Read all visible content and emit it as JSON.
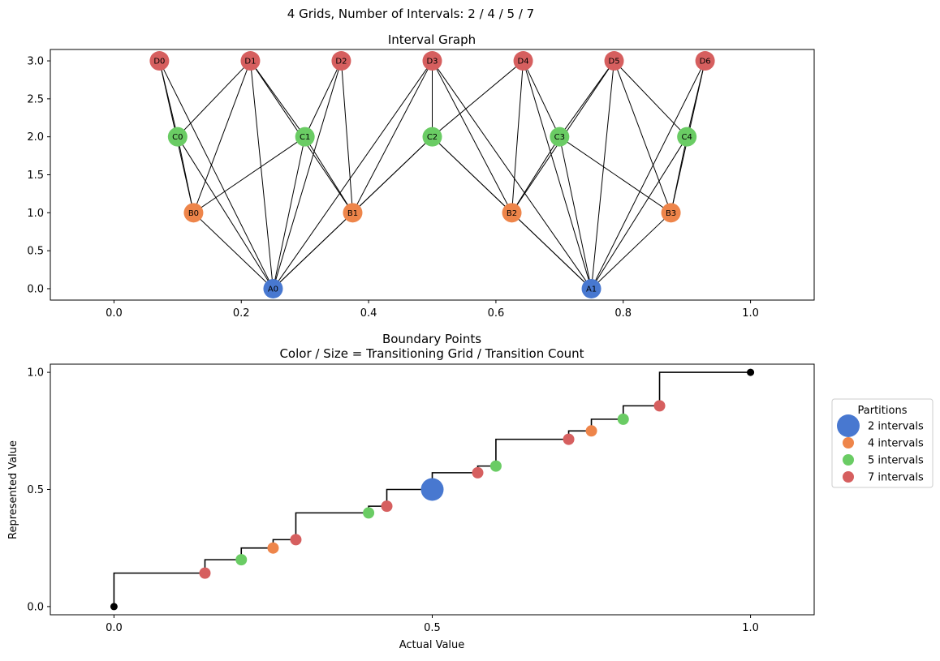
{
  "suptitle": "4 Grids, Number of Intervals: 2 / 4 / 5 / 7",
  "chart_data": [
    {
      "type": "network",
      "title": "Interval Graph",
      "xlim": [
        -0.1,
        1.1
      ],
      "ylim": [
        -0.15,
        3.15
      ],
      "xticks": [
        0.0,
        0.2,
        0.4,
        0.6,
        0.8,
        1.0
      ],
      "xtick_labels": [
        "0.0",
        "0.2",
        "0.4",
        "0.6",
        "0.8",
        "1.0"
      ],
      "yticks": [
        0.0,
        0.5,
        1.0,
        1.5,
        2.0,
        2.5,
        3.0
      ],
      "ytick_labels": [
        "0.0",
        "0.5",
        "1.0",
        "1.5",
        "2.0",
        "2.5",
        "3.0"
      ],
      "colors": {
        "A": "#4878d0",
        "B": "#ee854a",
        "C": "#6acc64",
        "D": "#d65f5f"
      },
      "nodes": [
        {
          "id": "A0",
          "x": 0.25,
          "y": 0
        },
        {
          "id": "A1",
          "x": 0.75,
          "y": 0
        },
        {
          "id": "B0",
          "x": 0.125,
          "y": 1
        },
        {
          "id": "B1",
          "x": 0.375,
          "y": 1
        },
        {
          "id": "B2",
          "x": 0.625,
          "y": 1
        },
        {
          "id": "B3",
          "x": 0.875,
          "y": 1
        },
        {
          "id": "C0",
          "x": 0.1,
          "y": 2
        },
        {
          "id": "C1",
          "x": 0.3,
          "y": 2
        },
        {
          "id": "C2",
          "x": 0.5,
          "y": 2
        },
        {
          "id": "C3",
          "x": 0.7,
          "y": 2
        },
        {
          "id": "C4",
          "x": 0.9,
          "y": 2
        },
        {
          "id": "D0",
          "x": 0.0714,
          "y": 3
        },
        {
          "id": "D1",
          "x": 0.2143,
          "y": 3
        },
        {
          "id": "D2",
          "x": 0.3571,
          "y": 3
        },
        {
          "id": "D3",
          "x": 0.5,
          "y": 3
        },
        {
          "id": "D4",
          "x": 0.6429,
          "y": 3
        },
        {
          "id": "D5",
          "x": 0.7857,
          "y": 3
        },
        {
          "id": "D6",
          "x": 0.9286,
          "y": 3
        }
      ],
      "edges": [
        [
          "A0",
          "B0"
        ],
        [
          "A0",
          "B1"
        ],
        [
          "A0",
          "C0"
        ],
        [
          "A0",
          "C1"
        ],
        [
          "A0",
          "C2"
        ],
        [
          "A0",
          "D0"
        ],
        [
          "A0",
          "D1"
        ],
        [
          "A0",
          "D2"
        ],
        [
          "A0",
          "D3"
        ],
        [
          "A1",
          "B2"
        ],
        [
          "A1",
          "B3"
        ],
        [
          "A1",
          "C2"
        ],
        [
          "A1",
          "C3"
        ],
        [
          "A1",
          "C4"
        ],
        [
          "A1",
          "D3"
        ],
        [
          "A1",
          "D4"
        ],
        [
          "A1",
          "D5"
        ],
        [
          "A1",
          "D6"
        ],
        [
          "B0",
          "C0"
        ],
        [
          "B0",
          "C1"
        ],
        [
          "B0",
          "D0"
        ],
        [
          "B0",
          "D1"
        ],
        [
          "B1",
          "C1"
        ],
        [
          "B1",
          "C2"
        ],
        [
          "B1",
          "D1"
        ],
        [
          "B1",
          "D2"
        ],
        [
          "B1",
          "D3"
        ],
        [
          "B2",
          "C2"
        ],
        [
          "B2",
          "C3"
        ],
        [
          "B2",
          "D3"
        ],
        [
          "B2",
          "D4"
        ],
        [
          "B2",
          "D5"
        ],
        [
          "B3",
          "C3"
        ],
        [
          "B3",
          "C4"
        ],
        [
          "B3",
          "D5"
        ],
        [
          "B3",
          "D6"
        ],
        [
          "C0",
          "D0"
        ],
        [
          "C0",
          "D1"
        ],
        [
          "C1",
          "D1"
        ],
        [
          "C1",
          "D2"
        ],
        [
          "C2",
          "D3"
        ],
        [
          "C2",
          "D4"
        ],
        [
          "C3",
          "D4"
        ],
        [
          "C3",
          "D5"
        ],
        [
          "C4",
          "D5"
        ],
        [
          "C4",
          "D6"
        ]
      ]
    },
    {
      "type": "step_scatter",
      "title": [
        "Boundary Points",
        "Color / Size = Transitioning Grid / Transition Count"
      ],
      "xlabel": "Actual Value",
      "ylabel": "Represented Value",
      "xlim": [
        -0.1,
        1.1
      ],
      "ylim": [
        -0.035,
        1.035
      ],
      "xticks": [
        0.0,
        0.5,
        1.0
      ],
      "xtick_labels": [
        "0.0",
        "0.5",
        "1.0"
      ],
      "yticks": [
        0.0,
        0.5,
        1.0
      ],
      "ytick_labels": [
        "0.0",
        "0.5",
        "1.0"
      ],
      "step_points": [
        [
          0,
          0
        ],
        [
          0,
          0.1429
        ],
        [
          0.1429,
          0.1429
        ],
        [
          0.1429,
          0.2
        ],
        [
          0.2,
          0.2
        ],
        [
          0.2,
          0.25
        ],
        [
          0.25,
          0.25
        ],
        [
          0.25,
          0.2857
        ],
        [
          0.2857,
          0.2857
        ],
        [
          0.2857,
          0.4
        ],
        [
          0.4,
          0.4
        ],
        [
          0.4,
          0.4286
        ],
        [
          0.4286,
          0.4286
        ],
        [
          0.4286,
          0.5
        ],
        [
          0.5,
          0.5
        ],
        [
          0.5,
          0.5714
        ],
        [
          0.5714,
          0.5714
        ],
        [
          0.5714,
          0.6
        ],
        [
          0.6,
          0.6
        ],
        [
          0.6,
          0.7143
        ],
        [
          0.7143,
          0.7143
        ],
        [
          0.7143,
          0.75
        ],
        [
          0.75,
          0.75
        ],
        [
          0.75,
          0.8
        ],
        [
          0.8,
          0.8
        ],
        [
          0.8,
          0.8571
        ],
        [
          0.8571,
          0.8571
        ],
        [
          0.8571,
          1.0
        ],
        [
          1.0,
          1.0
        ]
      ],
      "endpoints": [
        [
          0,
          0
        ],
        [
          1,
          1
        ]
      ],
      "boundary_points": [
        {
          "x": 0.1429,
          "y": 0.1429,
          "grid": "7 intervals"
        },
        {
          "x": 0.2,
          "y": 0.2,
          "grid": "5 intervals"
        },
        {
          "x": 0.25,
          "y": 0.25,
          "grid": "4 intervals"
        },
        {
          "x": 0.2857,
          "y": 0.2857,
          "grid": "7 intervals"
        },
        {
          "x": 0.4,
          "y": 0.4,
          "grid": "5 intervals"
        },
        {
          "x": 0.4286,
          "y": 0.4286,
          "grid": "7 intervals"
        },
        {
          "x": 0.5,
          "y": 0.5,
          "grid": "2 intervals"
        },
        {
          "x": 0.5714,
          "y": 0.5714,
          "grid": "7 intervals"
        },
        {
          "x": 0.6,
          "y": 0.6,
          "grid": "5 intervals"
        },
        {
          "x": 0.7143,
          "y": 0.7143,
          "grid": "7 intervals"
        },
        {
          "x": 0.75,
          "y": 0.75,
          "grid": "4 intervals"
        },
        {
          "x": 0.8,
          "y": 0.8,
          "grid": "5 intervals"
        },
        {
          "x": 0.8571,
          "y": 0.8571,
          "grid": "7 intervals"
        }
      ],
      "legend": {
        "title": "Partitions",
        "placement": "right",
        "entries": [
          {
            "label": "2 intervals",
            "color": "#4878d0"
          },
          {
            "label": "4 intervals",
            "color": "#ee854a"
          },
          {
            "label": "5 intervals",
            "color": "#6acc64"
          },
          {
            "label": "7 intervals",
            "color": "#d65f5f"
          }
        ]
      }
    }
  ]
}
